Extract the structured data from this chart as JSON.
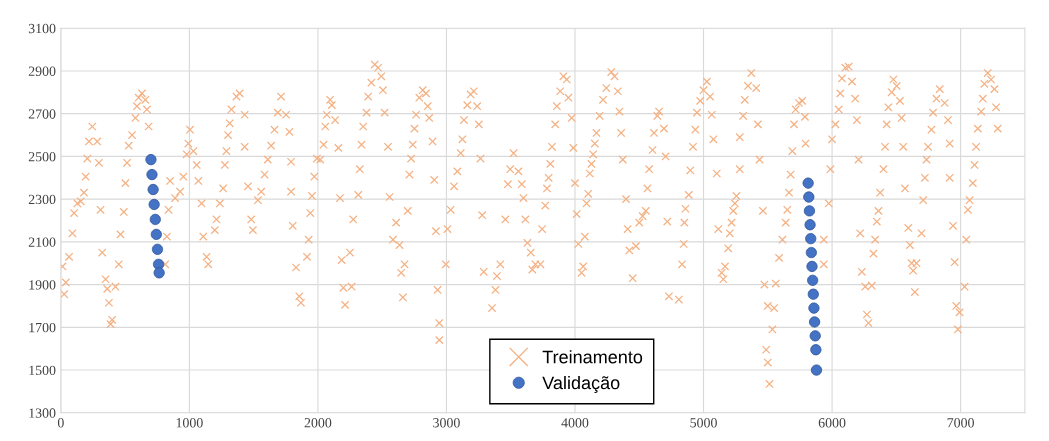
{
  "chart_data": {
    "type": "scatter",
    "xlim": [
      0,
      7500
    ],
    "ylim": [
      1300,
      3100
    ],
    "xticks": [
      0,
      1000,
      2000,
      3000,
      4000,
      5000,
      6000,
      7000
    ],
    "yticks": [
      1300,
      1500,
      1700,
      1900,
      2100,
      2300,
      2500,
      2700,
      2900,
      3100
    ],
    "grid": true,
    "legend": "bottom",
    "series": [
      {
        "name": "Treinamento",
        "color": "#f4b183",
        "marker": "cross",
        "x": [
          13,
          39,
          26,
          64,
          90,
          103,
          129,
          155,
          180,
          193,
          206,
          219,
          245,
          283,
          296,
          309,
          322,
          348,
          361,
          374,
          399,
          387,
          425,
          451,
          464,
          490,
          502,
          515,
          528,
          554,
          580,
          592,
          605,
          631,
          657,
          670,
          683,
          812,
          825,
          838,
          850,
          889,
          928,
          953,
          979,
          992,
          1005,
          1031,
          1057,
          1070,
          1095,
          1108,
          1134,
          1147,
          1198,
          1211,
          1237,
          1263,
          1276,
          1288,
          1301,
          1314,
          1327,
          1366,
          1391,
          1430,
          1430,
          1456,
          1481,
          1494,
          1533,
          1559,
          1585,
          1610,
          1636,
          1662,
          1688,
          1713,
          1752,
          1778,
          1791,
          1791,
          1804,
          1830,
          1855,
          1868,
          1915,
          1928,
          1941,
          1954,
          1972,
          1992,
          2018,
          2044,
          2057,
          2069,
          2095,
          2108,
          2134,
          2159,
          2172,
          2185,
          2198,
          2211,
          2249,
          2262,
          2275,
          2314,
          2326,
          2339,
          2352,
          2378,
          2391,
          2416,
          2442,
          2468,
          2493,
          2506,
          2519,
          2545,
          2558,
          2584,
          2609,
          2635,
          2648,
          2661,
          2674,
          2699,
          2712,
          2725,
          2738,
          2751,
          2764,
          2789,
          2815,
          2841,
          2854,
          2866,
          2892,
          2905,
          2918,
          2931,
          2944,
          2944,
          2995,
          3008,
          3033,
          3059,
          3085,
          3111,
          3124,
          3136,
          3162,
          3188,
          3213,
          3239,
          3252,
          3265,
          3278,
          3290,
          3355,
          3381,
          3393,
          3419,
          3458,
          3478,
          3496,
          3522,
          3560,
          3586,
          3599,
          3614,
          3630,
          3656,
          3668,
          3692,
          3731,
          3744,
          3769,
          3782,
          3795,
          3808,
          3821,
          3846,
          3859,
          3885,
          3910,
          3936,
          3949,
          3974,
          3987,
          4000,
          4013,
          4026,
          4051,
          4064,
          4077,
          4090,
          4103,
          4115,
          4128,
          4141,
          4154,
          4167,
          4192,
          4218,
          4244,
          4282,
          4308,
          4333,
          4346,
          4359,
          4372,
          4397,
          4410,
          4423,
          4449,
          4474,
          4500,
          4526,
          4551,
          4564,
          4577,
          4603,
          4615,
          4641,
          4654,
          4692,
          4705,
          4718,
          4731,
          4808,
          4833,
          4846,
          4851,
          4859,
          4885,
          4897,
          4918,
          4936,
          4949,
          4974,
          5000,
          5026,
          5051,
          5064,
          5077,
          5103,
          5115,
          5141,
          5154,
          5167,
          5192,
          5205,
          5218,
          5231,
          5244,
          5256,
          5282,
          5282,
          5308,
          5321,
          5346,
          5372,
          5410,
          5423,
          5436,
          5462,
          5474,
          5500,
          5487,
          5500,
          5513,
          5536,
          5549,
          5562,
          5588,
          5614,
          5639,
          5652,
          5665,
          5678,
          5691,
          5704,
          5717,
          5742,
          5768,
          5789,
          5794,
          5936,
          5936,
          5974,
          5987,
          6000,
          6026,
          6052,
          6064,
          6077,
          6103,
          6129,
          6155,
          6180,
          6193,
          6206,
          6219,
          6232,
          6258,
          6271,
          6283,
          6309,
          6322,
          6335,
          6348,
          6361,
          6374,
          6400,
          6412,
          6425,
          6438,
          6464,
          6477,
          6503,
          6528,
          6541,
          6554,
          6567,
          6593,
          6606,
          6619,
          6631,
          6644,
          6657,
          6696,
          6709,
          6722,
          6735,
          6747,
          6773,
          6786,
          6812,
          6838,
          6876,
          6902,
          6915,
          6915,
          6941,
          6954,
          6966,
          6992,
          6979,
          7031,
          7044,
          7057,
          7070,
          7095,
          7108,
          7121,
          7134,
          7160,
          7173,
          7185,
          7211,
          7237,
          7263,
          7276,
          7289
        ],
        "values": [
          1985,
          1910,
          1855,
          2030,
          2140,
          2235,
          2280,
          2290,
          2330,
          2405,
          2490,
          2570,
          2640,
          2570,
          2470,
          2250,
          2050,
          1925,
          1880,
          1815,
          1735,
          1715,
          1890,
          1995,
          2135,
          2240,
          2375,
          2470,
          2550,
          2600,
          2680,
          2735,
          2775,
          2795,
          2765,
          2720,
          2640,
          1995,
          2125,
          2250,
          2385,
          2305,
          2335,
          2405,
          2510,
          2560,
          2625,
          2525,
          2460,
          2385,
          2280,
          2125,
          2030,
          1995,
          2155,
          2205,
          2280,
          2350,
          2460,
          2525,
          2600,
          2655,
          2720,
          2780,
          2795,
          2695,
          2545,
          2360,
          2205,
          2155,
          2295,
          2335,
          2415,
          2485,
          2550,
          2625,
          2705,
          2780,
          2695,
          2615,
          2475,
          2335,
          2175,
          1980,
          1845,
          1815,
          2030,
          2110,
          2235,
          2315,
          2405,
          2490,
          2485,
          2555,
          2640,
          2695,
          2765,
          2740,
          2670,
          2540,
          2305,
          2015,
          1885,
          1805,
          2050,
          1890,
          2205,
          2320,
          2440,
          2555,
          2640,
          2705,
          2780,
          2845,
          2930,
          2915,
          2875,
          2810,
          2705,
          2545,
          2310,
          2110,
          2190,
          2085,
          1955,
          1840,
          1995,
          2245,
          2415,
          2490,
          2555,
          2630,
          2695,
          2775,
          2810,
          2795,
          2735,
          2680,
          2570,
          2390,
          2150,
          1875,
          1720,
          1640,
          1995,
          2160,
          2250,
          2360,
          2430,
          2515,
          2580,
          2670,
          2740,
          2790,
          2805,
          2735,
          2650,
          2490,
          2225,
          1960,
          1790,
          1875,
          1940,
          1995,
          2205,
          2370,
          2440,
          2515,
          2430,
          2370,
          2305,
          2205,
          2095,
          2050,
          1970,
          1995,
          1995,
          2160,
          2270,
          2350,
          2400,
          2465,
          2545,
          2650,
          2735,
          2805,
          2875,
          2860,
          2775,
          2680,
          2540,
          2375,
          2230,
          2090,
          1955,
          1985,
          2125,
          2280,
          2325,
          2420,
          2465,
          2510,
          2560,
          2610,
          2690,
          2765,
          2820,
          2895,
          2875,
          2805,
          2710,
          2610,
          2485,
          2300,
          2160,
          2060,
          1930,
          2080,
          2190,
          2220,
          2245,
          2350,
          2440,
          2530,
          2610,
          2690,
          2710,
          2630,
          2500,
          2195,
          1845,
          1830,
          1995,
          2090,
          2190,
          2255,
          2320,
          2435,
          2545,
          2625,
          2705,
          2760,
          2810,
          2850,
          2780,
          2695,
          2580,
          2420,
          2160,
          1955,
          1925,
          1985,
          2070,
          2140,
          2190,
          2245,
          2280,
          2315,
          2440,
          2590,
          2690,
          2765,
          2830,
          2890,
          2820,
          2650,
          2485,
          2245,
          1900,
          1800,
          1595,
          1535,
          1435,
          1690,
          1790,
          1905,
          2025,
          2110,
          2190,
          2250,
          2330,
          2415,
          2525,
          2650,
          2720,
          2750,
          2760,
          2685,
          2560,
          1995,
          2110,
          2280,
          2440,
          2580,
          2650,
          2720,
          2795,
          2865,
          2915,
          2920,
          2850,
          2770,
          2670,
          2485,
          2140,
          1960,
          1890,
          1760,
          1720,
          1895,
          2045,
          2110,
          2195,
          2245,
          2330,
          2440,
          2545,
          2650,
          2730,
          2800,
          2860,
          2830,
          2760,
          2680,
          2545,
          2350,
          2165,
          2085,
          2000,
          1965,
          1865,
          2000,
          2140,
          2295,
          2400,
          2485,
          2545,
          2625,
          2705,
          2770,
          2815,
          2750,
          2670,
          2560,
          2400,
          2175,
          2005,
          1800,
          1770,
          1690,
          1890,
          2110,
          2250,
          2295,
          2375,
          2460,
          2545,
          2630,
          2710,
          2770,
          2840,
          2890,
          2860,
          2815,
          2730,
          2630
        ]
      },
      {
        "name": "Validação",
        "color": "#4472c4",
        "marker": "circle",
        "x": [
          701,
          709,
          718,
          726,
          735,
          743,
          752,
          760,
          765,
          5814,
          5819,
          5824,
          5829,
          5834,
          5839,
          5844,
          5849,
          5854,
          5859,
          5864,
          5869,
          5874,
          5879
        ],
        "values": [
          2485,
          2415,
          2345,
          2275,
          2205,
          2135,
          2065,
          1995,
          1955,
          2375,
          2310,
          2245,
          2180,
          2115,
          2050,
          1985,
          1920,
          1855,
          1790,
          1725,
          1660,
          1595,
          1500
        ]
      }
    ]
  }
}
